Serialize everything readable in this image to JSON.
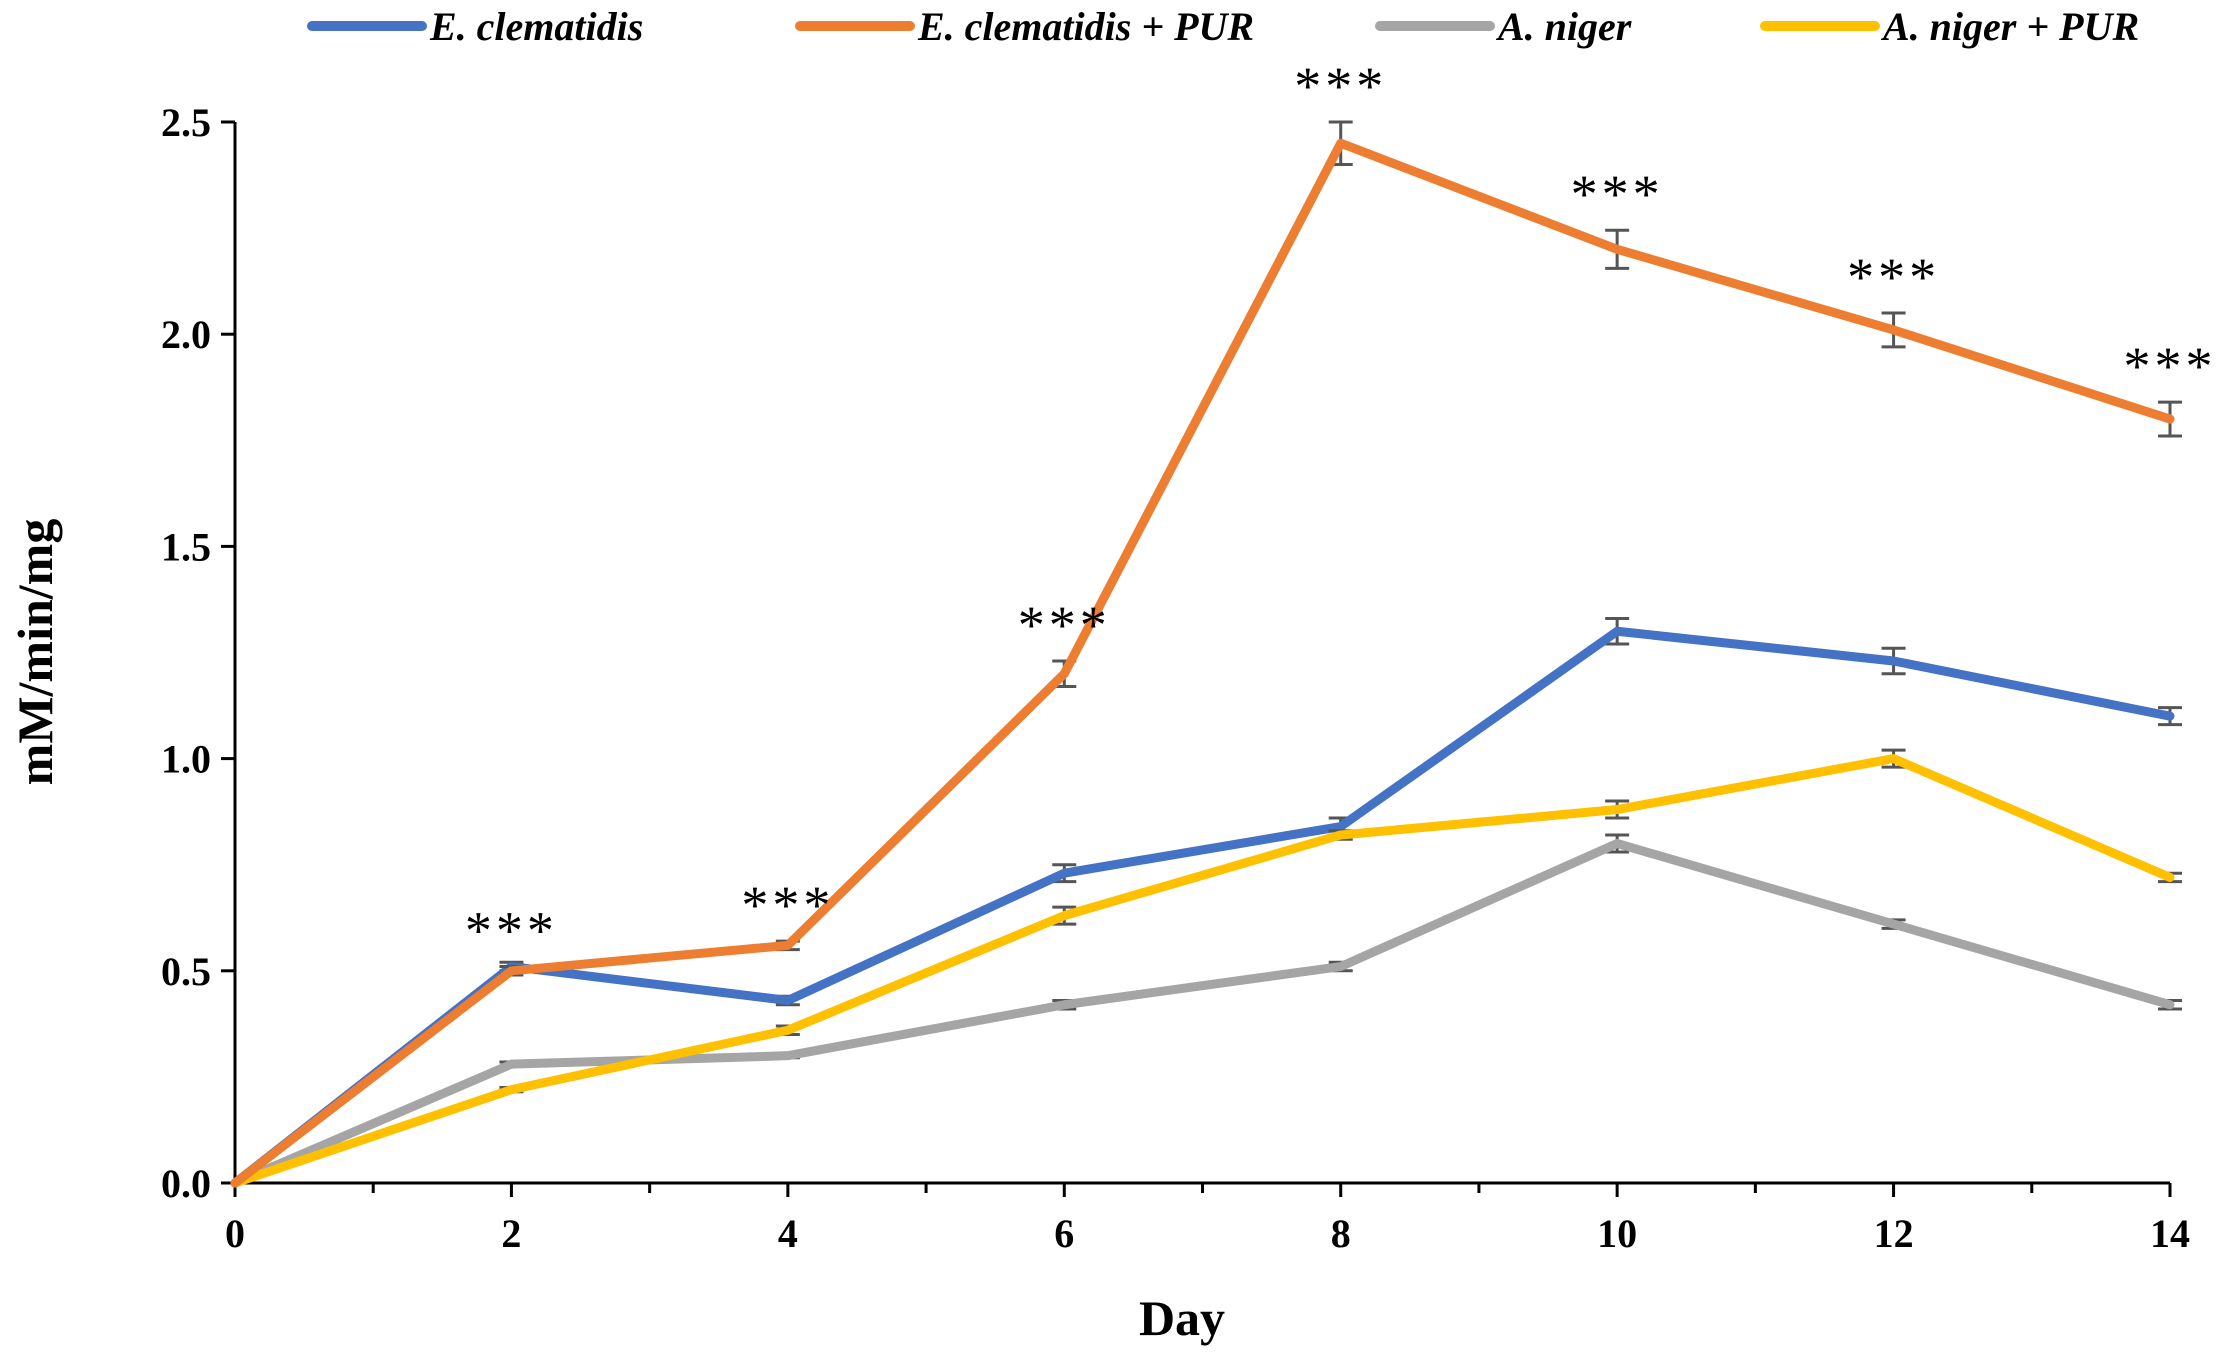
{
  "chart_data": {
    "type": "line",
    "title": "",
    "xlabel": "Day",
    "ylabel": "mM/min/mg",
    "xlim": [
      0,
      14
    ],
    "ylim": [
      0,
      2.5
    ],
    "x": [
      0,
      2,
      4,
      6,
      8,
      10,
      12,
      14
    ],
    "xticks": [
      "0",
      "2",
      "4",
      "6",
      "8",
      "10",
      "12",
      "14"
    ],
    "yticks": [
      "0.0",
      "0.5",
      "1.0",
      "1.5",
      "2.0",
      "2.5"
    ],
    "ytick_values": [
      0,
      0.5,
      1.0,
      1.5,
      2.0,
      2.5
    ],
    "grid": false,
    "legend_position": "top",
    "series": [
      {
        "name": "E. clematidis",
        "color": "#4472C4",
        "values": [
          0.0,
          0.51,
          0.43,
          0.73,
          0.84,
          1.3,
          1.23,
          1.1
        ],
        "errors": [
          0,
          0.01,
          0.01,
          0.02,
          0.02,
          0.03,
          0.03,
          0.02
        ]
      },
      {
        "name": "E. clematidis + PUR",
        "color": "#ED7D31",
        "values": [
          0.0,
          0.5,
          0.56,
          1.2,
          2.45,
          2.2,
          2.01,
          1.8
        ],
        "errors": [
          0,
          0.01,
          0.01,
          0.03,
          0.05,
          0.045,
          0.04,
          0.04
        ]
      },
      {
        "name": "A. niger",
        "color": "#A5A5A5",
        "values": [
          0.0,
          0.28,
          0.3,
          0.42,
          0.51,
          0.8,
          0.61,
          0.42
        ],
        "errors": [
          0,
          0.005,
          0.005,
          0.01,
          0.01,
          0.02,
          0.01,
          0.01
        ]
      },
      {
        "name": "A. niger + PUR",
        "color": "#FFC000",
        "values": [
          0.0,
          0.22,
          0.36,
          0.63,
          0.82,
          0.88,
          1.0,
          0.72
        ],
        "errors": [
          0,
          0.005,
          0.01,
          0.02,
          0.01,
          0.02,
          0.02,
          0.01
        ]
      }
    ],
    "annotations": [
      {
        "x": 2,
        "text": "***"
      },
      {
        "x": 4,
        "text": "***"
      },
      {
        "x": 6,
        "text": "***"
      },
      {
        "x": 8,
        "text": "***"
      },
      {
        "x": 10,
        "text": "***"
      },
      {
        "x": 12,
        "text": "***"
      },
      {
        "x": 14,
        "text": "***"
      }
    ]
  }
}
